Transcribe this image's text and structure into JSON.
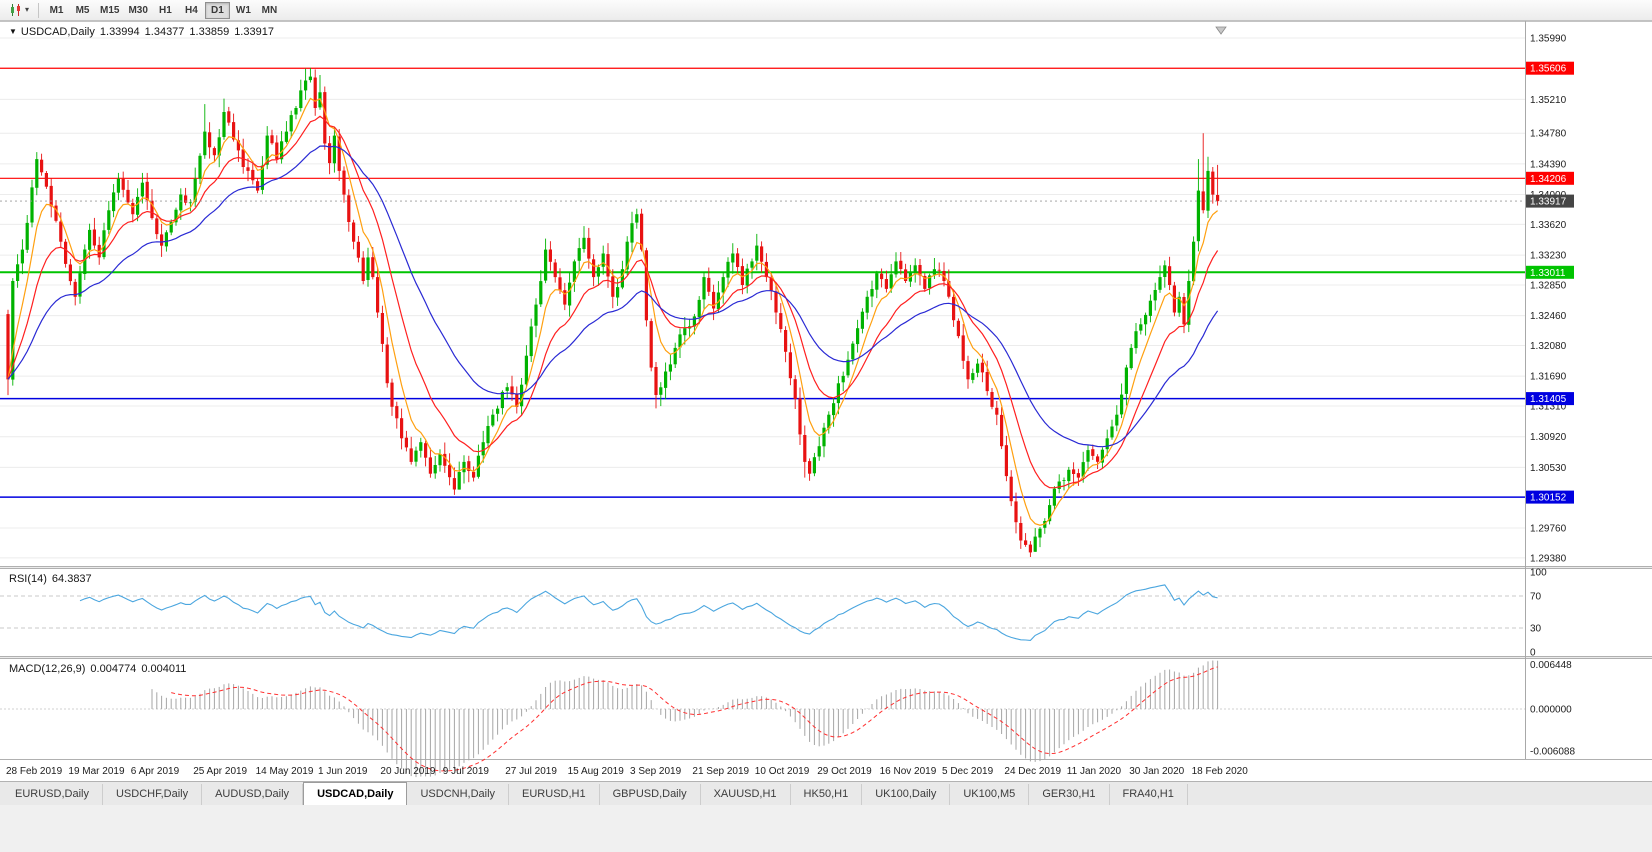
{
  "toolbar": {
    "timeframes": [
      "M1",
      "M5",
      "M15",
      "M30",
      "H1",
      "H4",
      "D1",
      "W1",
      "MN"
    ],
    "active_timeframe": "D1"
  },
  "icons": {
    "one_click": "▼",
    "caret": "▾"
  },
  "chart": {
    "title": "USDCAD,Daily",
    "open": "1.33994",
    "high": "1.34377",
    "low": "1.33859",
    "close": "1.33917"
  },
  "indicators": {
    "rsi_label": "RSI(14)",
    "rsi_value": "64.3837",
    "macd_label": "MACD(12,26,9)",
    "macd_value": "0.004774",
    "macd_signal": "0.004011"
  },
  "levels": [
    {
      "name": "resistance-1",
      "value": "1.35606",
      "price": 1.35606,
      "color": "#FF0000",
      "width": 1.2
    },
    {
      "name": "resistance-2",
      "value": "1.34206",
      "price": 1.34206,
      "color": "#FF0000",
      "width": 1.2
    },
    {
      "name": "support-green",
      "value": "1.33011",
      "price": 1.33011,
      "color": "#00C400",
      "width": 2
    },
    {
      "name": "support-blue-1",
      "value": "1.31405",
      "price": 1.31405,
      "color": "#0000E0",
      "width": 1.5
    },
    {
      "name": "support-blue-2",
      "value": "1.30152",
      "price": 1.30152,
      "color": "#0000E0",
      "width": 1.5
    }
  ],
  "axes": {
    "price_ticks": [
      "1.35990",
      "1.35210",
      "1.34780",
      "1.34390",
      "1.34000",
      "1.33620",
      "1.33230",
      "1.32850",
      "1.32460",
      "1.32080",
      "1.31690",
      "1.31310",
      "1.30920",
      "1.30530",
      "1.29760",
      "1.29380"
    ],
    "rsi_ticks": [
      "100",
      "70",
      "30",
      "0"
    ],
    "macd_ticks": [
      "0.006448",
      "0.000000",
      "-0.006088"
    ],
    "date_ticks": [
      [
        "28 Feb 2019",
        0
      ],
      [
        "19 Mar 2019",
        13
      ],
      [
        "6 Apr 2019",
        26
      ],
      [
        "25 Apr 2019",
        39
      ],
      [
        "14 May 2019",
        52
      ],
      [
        "1 Jun 2019",
        65
      ],
      [
        "20 Jun 2019",
        78
      ],
      [
        "9 Jul 2019",
        91
      ],
      [
        "27 Jul 2019",
        104
      ],
      [
        "15 Aug 2019",
        117
      ],
      [
        "3 Sep 2019",
        130
      ],
      [
        "21 Sep 2019",
        143
      ],
      [
        "10 Oct 2019",
        156
      ],
      [
        "29 Oct 2019",
        169
      ],
      [
        "16 Nov 2019",
        182
      ],
      [
        "5 Dec 2019",
        195
      ],
      [
        "24 Dec 2019",
        208
      ],
      [
        "11 Jan 2020",
        221
      ],
      [
        "30 Jan 2020",
        234
      ],
      [
        "18 Feb 2020",
        247
      ]
    ]
  },
  "chart_data": {
    "type": "candlestick",
    "symbol": "USDCAD",
    "timeframe": "Daily",
    "bar_count": 253,
    "price_range": [
      1.29276,
      1.36156
    ],
    "first_open": 1.3248,
    "last_bar": {
      "open": 1.33994,
      "high": 1.34377,
      "low": 1.33859,
      "close": 1.33917
    },
    "close_anchors": [
      [
        0,
        1.3165
      ],
      [
        1,
        1.329
      ],
      [
        3,
        1.333
      ],
      [
        6,
        1.3445
      ],
      [
        8,
        1.341
      ],
      [
        11,
        1.334
      ],
      [
        13,
        1.329
      ],
      [
        14,
        1.327
      ],
      [
        15,
        1.33
      ],
      [
        17,
        1.3355
      ],
      [
        19,
        1.332
      ],
      [
        21,
        1.338
      ],
      [
        23,
        1.342
      ],
      [
        25,
        1.339
      ],
      [
        26,
        1.3375
      ],
      [
        28,
        1.3415
      ],
      [
        30,
        1.337
      ],
      [
        32,
        1.3335
      ],
      [
        34,
        1.3365
      ],
      [
        36,
        1.34
      ],
      [
        38,
        1.339
      ],
      [
        39,
        1.342
      ],
      [
        41,
        1.348
      ],
      [
        43,
        1.345
      ],
      [
        45,
        1.3505
      ],
      [
        47,
        1.347
      ],
      [
        49,
        1.3435
      ],
      [
        52,
        1.3405
      ],
      [
        54,
        1.3475
      ],
      [
        56,
        1.3445
      ],
      [
        58,
        1.348
      ],
      [
        60,
        1.351
      ],
      [
        62,
        1.3545
      ],
      [
        63,
        1.355
      ],
      [
        64,
        1.351
      ],
      [
        65,
        1.353
      ],
      [
        66,
        1.3465
      ],
      [
        67,
        1.344
      ],
      [
        68,
        1.3475
      ],
      [
        69,
        1.343
      ],
      [
        70,
        1.34
      ],
      [
        72,
        1.334
      ],
      [
        74,
        1.329
      ],
      [
        75,
        1.332
      ],
      [
        76,
        1.3295
      ],
      [
        77,
        1.325
      ],
      [
        78,
        1.321
      ],
      [
        79,
        1.316
      ],
      [
        80,
        1.313
      ],
      [
        82,
        1.309
      ],
      [
        84,
        1.306
      ],
      [
        86,
        1.3085
      ],
      [
        88,
        1.3045
      ],
      [
        90,
        1.307
      ],
      [
        91,
        1.3055
      ],
      [
        93,
        1.3025
      ],
      [
        95,
        1.306
      ],
      [
        97,
        1.304
      ],
      [
        99,
        1.3085
      ],
      [
        101,
        1.312
      ],
      [
        104,
        1.3155
      ],
      [
        106,
        1.313
      ],
      [
        108,
        1.3195
      ],
      [
        110,
        1.326
      ],
      [
        112,
        1.333
      ],
      [
        114,
        1.3295
      ],
      [
        116,
        1.326
      ],
      [
        118,
        1.3315
      ],
      [
        120,
        1.3345
      ],
      [
        122,
        1.3295
      ],
      [
        124,
        1.3325
      ],
      [
        126,
        1.327
      ],
      [
        128,
        1.3305
      ],
      [
        129,
        1.334
      ],
      [
        131,
        1.3375
      ],
      [
        132,
        1.333
      ],
      [
        133,
        1.324
      ],
      [
        134,
        1.318
      ],
      [
        135,
        1.3145
      ],
      [
        137,
        1.3175
      ],
      [
        139,
        1.3205
      ],
      [
        141,
        1.323
      ],
      [
        143,
        1.3245
      ],
      [
        145,
        1.3295
      ],
      [
        147,
        1.3255
      ],
      [
        149,
        1.3295
      ],
      [
        151,
        1.3325
      ],
      [
        153,
        1.3285
      ],
      [
        155,
        1.3315
      ],
      [
        156,
        1.3335
      ],
      [
        158,
        1.3295
      ],
      [
        160,
        1.325
      ],
      [
        162,
        1.32
      ],
      [
        164,
        1.314
      ],
      [
        165,
        1.3095
      ],
      [
        166,
        1.306
      ],
      [
        167,
        1.3045
      ],
      [
        169,
        1.308
      ],
      [
        171,
        1.312
      ],
      [
        173,
        1.316
      ],
      [
        175,
        1.319
      ],
      [
        177,
        1.323
      ],
      [
        179,
        1.327
      ],
      [
        181,
        1.33
      ],
      [
        183,
        1.328
      ],
      [
        185,
        1.3315
      ],
      [
        187,
        1.329
      ],
      [
        189,
        1.331
      ],
      [
        191,
        1.328
      ],
      [
        193,
        1.3305
      ],
      [
        195,
        1.329
      ],
      [
        196,
        1.327
      ],
      [
        198,
        1.322
      ],
      [
        200,
        1.3165
      ],
      [
        202,
        1.3185
      ],
      [
        204,
        1.315
      ],
      [
        206,
        1.312
      ],
      [
        207,
        1.308
      ],
      [
        209,
        1.301
      ],
      [
        211,
        1.296
      ],
      [
        213,
        1.2945
      ],
      [
        215,
        1.2975
      ],
      [
        217,
        1.3005
      ],
      [
        219,
        1.3035
      ],
      [
        221,
        1.305
      ],
      [
        223,
        1.304
      ],
      [
        225,
        1.3075
      ],
      [
        227,
        1.306
      ],
      [
        229,
        1.309
      ],
      [
        231,
        1.312
      ],
      [
        233,
        1.318
      ],
      [
        234,
        1.3205
      ],
      [
        236,
        1.3235
      ],
      [
        238,
        1.3265
      ],
      [
        240,
        1.3295
      ],
      [
        241,
        1.331
      ],
      [
        242,
        1.3285
      ],
      [
        243,
        1.325
      ],
      [
        244,
        1.327
      ],
      [
        245,
        1.3235
      ],
      [
        246,
        1.329
      ],
      [
        247,
        1.334
      ],
      [
        248,
        1.3405
      ],
      [
        249,
        1.338
      ],
      [
        250,
        1.343
      ],
      [
        251,
        1.34
      ],
      [
        252,
        1.33917
      ]
    ],
    "forced_highs": [
      [
        41,
        1.3515
      ],
      [
        45,
        1.3522
      ],
      [
        62,
        1.356
      ],
      [
        63,
        1.3561
      ],
      [
        65,
        1.3552
      ],
      [
        131,
        1.3382
      ],
      [
        156,
        1.335
      ],
      [
        248,
        1.3445
      ],
      [
        249,
        1.3478
      ],
      [
        250,
        1.3448
      ],
      [
        251,
        1.3435
      ]
    ],
    "forced_lows": [
      [
        0,
        1.3145
      ],
      [
        93,
        1.3018
      ],
      [
        94,
        1.3028
      ],
      [
        135,
        1.3128
      ],
      [
        166,
        1.304
      ],
      [
        167,
        1.3036
      ],
      [
        212,
        1.2952
      ],
      [
        213,
        1.2939
      ],
      [
        214,
        1.2946
      ]
    ],
    "moving_averages": [
      {
        "name": "ma-fast-line",
        "period": 6,
        "color": "#FFA010"
      },
      {
        "name": "ma-mid-line",
        "period": 14,
        "color": "#FF2020"
      },
      {
        "name": "ma-slow-line",
        "period": 32,
        "color": "#2A2AD4"
      }
    ],
    "rsi": {
      "period": 14,
      "current": 64.3837,
      "levels": [
        70,
        30
      ]
    },
    "macd": {
      "fast": 12,
      "slow": 26,
      "signal": 9,
      "current": 0.004774,
      "signal_current": 0.004011
    }
  },
  "tabs": {
    "items": [
      "EURUSD,Daily",
      "USDCHF,Daily",
      "AUDUSD,Daily",
      "USDCAD,Daily",
      "USDCNH,Daily",
      "EURUSD,H1",
      "GBPUSD,Daily",
      "XAUUSD,H1",
      "HK50,H1",
      "UK100,Daily",
      "UK100,M5",
      "GER30,H1",
      "FRA40,H1"
    ],
    "active": "USDCAD,Daily"
  },
  "colors": {
    "bull": "#00B200",
    "bear": "#E81212",
    "grid": "#ECECEC",
    "rsi_line": "#4BA6DF",
    "macd_hist": "#A6A6A6",
    "macd_signal": "#FF3030",
    "current_price_box": "#454545"
  }
}
